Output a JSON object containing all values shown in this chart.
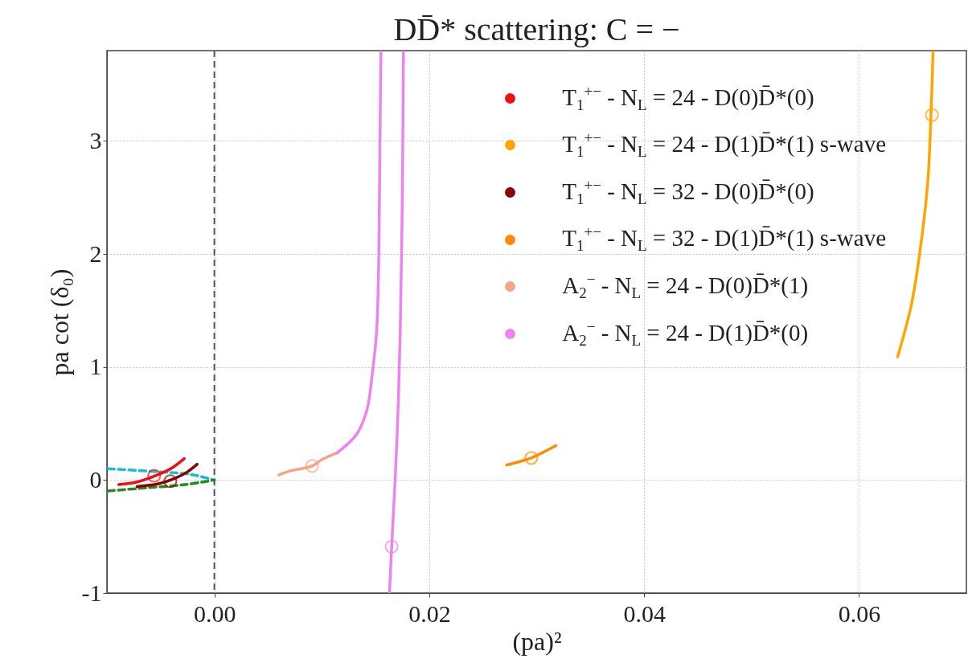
{
  "chart_data": {
    "type": "line",
    "title": "DD̄* scattering: C = −",
    "xlabel": "(pa)²",
    "ylabel": "pa cot (δ₀)",
    "xlim": [
      -0.01,
      0.07
    ],
    "xticks": [
      {
        "value": 0,
        "label": "0.00"
      },
      0.02,
      0.04,
      0.06
    ],
    "ylim": [
      -1,
      3.8
    ],
    "yticks": [
      -1,
      0,
      1,
      2,
      3
    ],
    "grid": true,
    "legend": "top right",
    "ref_lines": [
      {
        "axis": "x",
        "value": 0,
        "color": "#555555",
        "line_style": "dashed"
      }
    ],
    "series": [
      {
        "color": "#17becf",
        "line_style": "dashed",
        "x": [
          -0.0099,
          -0.0052,
          -0.0022,
          0
        ],
        "values": [
          0.1,
          0.073,
          0.05,
          0
        ]
      },
      {
        "color": "#228b22",
        "line_style": "dashed",
        "x": [
          -0.0099,
          -0.0064,
          -0.0027,
          0
        ],
        "values": [
          -0.097,
          -0.069,
          -0.04,
          0
        ]
      },
      {
        "color": "#ee1111",
        "x": [
          -0.0089,
          -0.0072,
          -0.0052,
          -0.0039,
          -0.0028
        ],
        "values": [
          -0.04,
          -0.017,
          0.05,
          0.11,
          0.19
        ]
      },
      {
        "color": "#8b0000",
        "x": [
          -0.0072,
          -0.0052,
          -0.0037,
          -0.0025,
          -0.0016
        ],
        "values": [
          -0.057,
          -0.033,
          0.014,
          0.073,
          0.14
        ]
      },
      {
        "color": "#f4a582",
        "x": [
          0.006,
          0.007,
          0.0091,
          0.01,
          0.0114
        ],
        "values": [
          0.044,
          0.08,
          0.125,
          0.18,
          0.24
        ]
      },
      {
        "color": "#ee82ee",
        "x": [
          0.0114,
          0.0132,
          0.0142,
          0.0147,
          0.0151,
          0.0153,
          0.0154,
          0.0155
        ],
        "values": [
          0.24,
          0.4,
          0.62,
          0.94,
          1.31,
          1.94,
          2.87,
          3.8
        ]
      },
      {
        "color": "#ee82ee",
        "x": [
          0.0176,
          0.0175,
          0.0173,
          0.017,
          0.0165,
          0.0163
        ],
        "values": [
          3.8,
          2.56,
          1.31,
          0.37,
          -0.6,
          -1.0
        ]
      },
      {
        "color": "#ff8c00",
        "x": [
          0.0272,
          0.0284,
          0.0295,
          0.0318
        ],
        "values": [
          0.133,
          0.163,
          0.196,
          0.305
        ]
      },
      {
        "color": "#ffa500",
        "x": [
          0.0636,
          0.0649,
          0.0657,
          0.0664,
          0.0667,
          0.0669
        ],
        "values": [
          1.09,
          1.56,
          2.04,
          2.63,
          3.22,
          3.8
        ]
      },
      {
        "type": "scatter",
        "marker": "circle",
        "name": "T$_{1}$$^{+−}$ - N$_{L}$ = 24 - D(0)D̄*(0)",
        "color": "#ee1111",
        "x": [
          -0.0056
        ],
        "values": [
          0.038
        ]
      },
      {
        "type": "scatter",
        "marker": "circle",
        "name": "T$_{1}$$^{+−}$ - N$_{L}$ = 24 - D(1)D̄*(1) s-wave",
        "color": "#ffa500",
        "x": [
          0.0668
        ],
        "values": [
          3.23
        ]
      },
      {
        "type": "scatter",
        "marker": "circle",
        "name": "T$_{1}$$^{+−}$ - N$_{L}$ = 32 - D(0)D̄*(0)",
        "color": "#8b0000",
        "x": [
          -0.0041
        ],
        "values": [
          -0.01
        ]
      },
      {
        "type": "scatter",
        "marker": "circle",
        "name": "T$_{1}$$^{+−}$ - N$_{L}$ = 32 - D(1)D̄*(1) s-wave",
        "color": "#ff8c00",
        "x": [
          0.0295
        ],
        "values": [
          0.196
        ]
      },
      {
        "type": "scatter",
        "marker": "circle",
        "name": "A$_{2}$$^{−}$ - N$_{L}$ = 24 - D(0)D̄*(1)",
        "color": "#f4a582",
        "x": [
          0.0091
        ],
        "values": [
          0.125
        ]
      },
      {
        "type": "scatter",
        "marker": "circle",
        "name": "A$_{2}$$^{−}$ - N$_{L}$ = 24 - D(1)D̄*(0)",
        "color": "#ee82ee",
        "x": [
          0.0165
        ],
        "values": [
          -0.59
        ]
      }
    ]
  }
}
